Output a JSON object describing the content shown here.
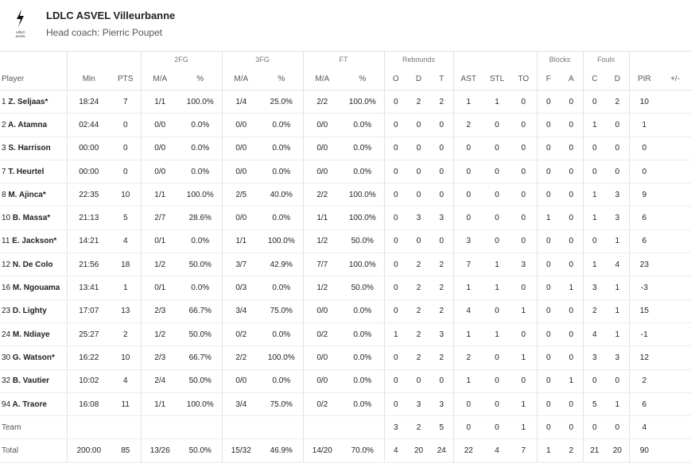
{
  "team": {
    "name": "LDLC ASVEL Villeurbanne",
    "coach": "Head coach: Pierric Poupet",
    "logo_text": "LDLC ASVEL"
  },
  "groups": {
    "fg2": "2FG",
    "fg3": "3FG",
    "ft": "FT",
    "reb": "Rebounds",
    "blocks": "Blocks",
    "fouls": "Fouls"
  },
  "columns": {
    "player": "Player",
    "min": "Min",
    "pts": "PTS",
    "fg2_ma": "M/A",
    "fg2_pct": "%",
    "fg3_ma": "M/A",
    "fg3_pct": "%",
    "ft_ma": "M/A",
    "ft_pct": "%",
    "o": "O",
    "d": "D",
    "t": "T",
    "ast": "AST",
    "stl": "STL",
    "to": "TO",
    "bf": "F",
    "ba": "A",
    "fc": "C",
    "fd": "D",
    "pir": "PIR",
    "pm": "+/-"
  },
  "rows": [
    {
      "num": "1",
      "name": "Z. Seljaas*",
      "min": "18:24",
      "pts": "7",
      "fg2": "1/1",
      "fg2p": "100.0%",
      "fg3": "1/4",
      "fg3p": "25.0%",
      "ft": "2/2",
      "ftp": "100.0%",
      "o": "0",
      "d": "2",
      "t": "2",
      "ast": "1",
      "stl": "1",
      "to": "0",
      "bf": "0",
      "ba": "0",
      "fc": "0",
      "fd": "2",
      "pir": "10",
      "pm": ""
    },
    {
      "num": "2",
      "name": "A. Atamna",
      "min": "02:44",
      "pts": "0",
      "fg2": "0/0",
      "fg2p": "0.0%",
      "fg3": "0/0",
      "fg3p": "0.0%",
      "ft": "0/0",
      "ftp": "0.0%",
      "o": "0",
      "d": "0",
      "t": "0",
      "ast": "2",
      "stl": "0",
      "to": "0",
      "bf": "0",
      "ba": "0",
      "fc": "1",
      "fd": "0",
      "pir": "1",
      "pm": ""
    },
    {
      "num": "3",
      "name": "S. Harrison",
      "min": "00:00",
      "pts": "0",
      "fg2": "0/0",
      "fg2p": "0.0%",
      "fg3": "0/0",
      "fg3p": "0.0%",
      "ft": "0/0",
      "ftp": "0.0%",
      "o": "0",
      "d": "0",
      "t": "0",
      "ast": "0",
      "stl": "0",
      "to": "0",
      "bf": "0",
      "ba": "0",
      "fc": "0",
      "fd": "0",
      "pir": "0",
      "pm": ""
    },
    {
      "num": "7",
      "name": "T. Heurtel",
      "min": "00:00",
      "pts": "0",
      "fg2": "0/0",
      "fg2p": "0.0%",
      "fg3": "0/0",
      "fg3p": "0.0%",
      "ft": "0/0",
      "ftp": "0.0%",
      "o": "0",
      "d": "0",
      "t": "0",
      "ast": "0",
      "stl": "0",
      "to": "0",
      "bf": "0",
      "ba": "0",
      "fc": "0",
      "fd": "0",
      "pir": "0",
      "pm": ""
    },
    {
      "num": "8",
      "name": "M. Ajinca*",
      "min": "22:35",
      "pts": "10",
      "fg2": "1/1",
      "fg2p": "100.0%",
      "fg3": "2/5",
      "fg3p": "40.0%",
      "ft": "2/2",
      "ftp": "100.0%",
      "o": "0",
      "d": "0",
      "t": "0",
      "ast": "0",
      "stl": "0",
      "to": "0",
      "bf": "0",
      "ba": "0",
      "fc": "1",
      "fd": "3",
      "pir": "9",
      "pm": ""
    },
    {
      "num": "10",
      "name": "B. Massa*",
      "min": "21:13",
      "pts": "5",
      "fg2": "2/7",
      "fg2p": "28.6%",
      "fg3": "0/0",
      "fg3p": "0.0%",
      "ft": "1/1",
      "ftp": "100.0%",
      "o": "0",
      "d": "3",
      "t": "3",
      "ast": "0",
      "stl": "0",
      "to": "0",
      "bf": "1",
      "ba": "0",
      "fc": "1",
      "fd": "3",
      "pir": "6",
      "pm": ""
    },
    {
      "num": "11",
      "name": "E. Jackson*",
      "min": "14:21",
      "pts": "4",
      "fg2": "0/1",
      "fg2p": "0.0%",
      "fg3": "1/1",
      "fg3p": "100.0%",
      "ft": "1/2",
      "ftp": "50.0%",
      "o": "0",
      "d": "0",
      "t": "0",
      "ast": "3",
      "stl": "0",
      "to": "0",
      "bf": "0",
      "ba": "0",
      "fc": "0",
      "fd": "1",
      "pir": "6",
      "pm": ""
    },
    {
      "num": "12",
      "name": "N. De Colo",
      "min": "21:56",
      "pts": "18",
      "fg2": "1/2",
      "fg2p": "50.0%",
      "fg3": "3/7",
      "fg3p": "42.9%",
      "ft": "7/7",
      "ftp": "100.0%",
      "o": "0",
      "d": "2",
      "t": "2",
      "ast": "7",
      "stl": "1",
      "to": "3",
      "bf": "0",
      "ba": "0",
      "fc": "1",
      "fd": "4",
      "pir": "23",
      "pm": ""
    },
    {
      "num": "16",
      "name": "M. Ngouama",
      "min": "13:41",
      "pts": "1",
      "fg2": "0/1",
      "fg2p": "0.0%",
      "fg3": "0/3",
      "fg3p": "0.0%",
      "ft": "1/2",
      "ftp": "50.0%",
      "o": "0",
      "d": "2",
      "t": "2",
      "ast": "1",
      "stl": "1",
      "to": "0",
      "bf": "0",
      "ba": "1",
      "fc": "3",
      "fd": "1",
      "pir": "-3",
      "pm": ""
    },
    {
      "num": "23",
      "name": "D. Lighty",
      "min": "17:07",
      "pts": "13",
      "fg2": "2/3",
      "fg2p": "66.7%",
      "fg3": "3/4",
      "fg3p": "75.0%",
      "ft": "0/0",
      "ftp": "0.0%",
      "o": "0",
      "d": "2",
      "t": "2",
      "ast": "4",
      "stl": "0",
      "to": "1",
      "bf": "0",
      "ba": "0",
      "fc": "2",
      "fd": "1",
      "pir": "15",
      "pm": ""
    },
    {
      "num": "24",
      "name": "M. Ndiaye",
      "min": "25:27",
      "pts": "2",
      "fg2": "1/2",
      "fg2p": "50.0%",
      "fg3": "0/2",
      "fg3p": "0.0%",
      "ft": "0/2",
      "ftp": "0.0%",
      "o": "1",
      "d": "2",
      "t": "3",
      "ast": "1",
      "stl": "1",
      "to": "0",
      "bf": "0",
      "ba": "0",
      "fc": "4",
      "fd": "1",
      "pir": "-1",
      "pm": ""
    },
    {
      "num": "30",
      "name": "G. Watson*",
      "min": "16:22",
      "pts": "10",
      "fg2": "2/3",
      "fg2p": "66.7%",
      "fg3": "2/2",
      "fg3p": "100.0%",
      "ft": "0/0",
      "ftp": "0.0%",
      "o": "0",
      "d": "2",
      "t": "2",
      "ast": "2",
      "stl": "0",
      "to": "1",
      "bf": "0",
      "ba": "0",
      "fc": "3",
      "fd": "3",
      "pir": "12",
      "pm": ""
    },
    {
      "num": "32",
      "name": "B. Vautier",
      "min": "10:02",
      "pts": "4",
      "fg2": "2/4",
      "fg2p": "50.0%",
      "fg3": "0/0",
      "fg3p": "0.0%",
      "ft": "0/0",
      "ftp": "0.0%",
      "o": "0",
      "d": "0",
      "t": "0",
      "ast": "1",
      "stl": "0",
      "to": "0",
      "bf": "0",
      "ba": "1",
      "fc": "0",
      "fd": "0",
      "pir": "2",
      "pm": ""
    },
    {
      "num": "94",
      "name": "A. Traore",
      "min": "16:08",
      "pts": "11",
      "fg2": "1/1",
      "fg2p": "100.0%",
      "fg3": "3/4",
      "fg3p": "75.0%",
      "ft": "0/2",
      "ftp": "0.0%",
      "o": "0",
      "d": "3",
      "t": "3",
      "ast": "0",
      "stl": "0",
      "to": "1",
      "bf": "0",
      "ba": "0",
      "fc": "5",
      "fd": "1",
      "pir": "6",
      "pm": ""
    }
  ],
  "team_row": {
    "name": "Team",
    "min": "",
    "pts": "",
    "fg2": "",
    "fg2p": "",
    "fg3": "",
    "fg3p": "",
    "ft": "",
    "ftp": "",
    "o": "3",
    "d": "2",
    "t": "5",
    "ast": "0",
    "stl": "0",
    "to": "1",
    "bf": "0",
    "ba": "0",
    "fc": "0",
    "fd": "0",
    "pir": "4",
    "pm": ""
  },
  "total_row": {
    "name": "Total",
    "min": "200:00",
    "pts": "85",
    "fg2": "13/26",
    "fg2p": "50.0%",
    "fg3": "15/32",
    "fg3p": "46.9%",
    "ft": "14/20",
    "ftp": "70.0%",
    "o": "4",
    "d": "20",
    "t": "24",
    "ast": "22",
    "stl": "4",
    "to": "7",
    "bf": "1",
    "ba": "2",
    "fc": "21",
    "fd": "20",
    "pir": "90",
    "pm": ""
  }
}
